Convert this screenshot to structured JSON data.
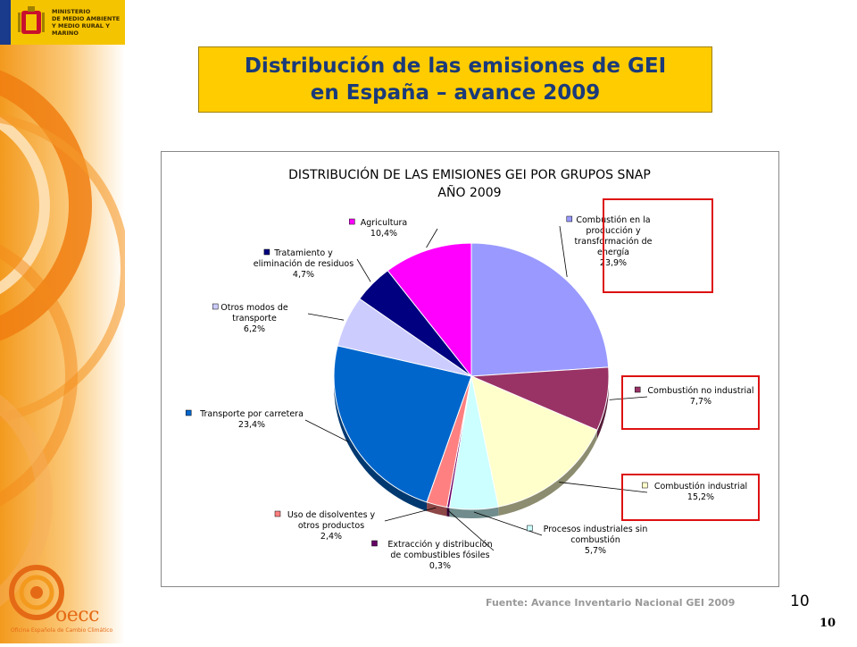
{
  "ministry": {
    "lines": [
      "MINISTERIO",
      "DE MEDIO AMBIENTE",
      "Y MEDIO RURAL Y MARINO"
    ]
  },
  "slide": {
    "title_line1": "Distribución de las emisiones de GEI",
    "title_line2": "en España – avance 2009",
    "source": "Fuente: Avance Inventario Nacional GEI 2009",
    "page_number": "10",
    "page_number_footer": "10"
  },
  "logo": {
    "name": "oecc",
    "subtitle": "Oficina Española de Cambio Climático"
  },
  "colors": {
    "orange": "#f39a1e",
    "title_bg": "#ffcc00",
    "title_text": "#1a3a7a",
    "highlight": "#dd1111"
  },
  "chart_data": {
    "type": "pie",
    "title": "DISTRIBUCIÓN DE LAS EMISIONES GEI POR GRUPOS SNAP",
    "subtitle": "AÑO 2009",
    "series": [
      {
        "name": "Combustión en la producción y transformación de energía",
        "label_lines": [
          "Combustión en la",
          "producción y",
          "transformación de",
          "energía"
        ],
        "value": 23.9,
        "value_label": "23,9%",
        "color": "#9999ff",
        "highlighted": true
      },
      {
        "name": "Combustión no industrial",
        "label_lines": [
          "Combustión no industrial"
        ],
        "value": 7.7,
        "value_label": "7,7%",
        "color": "#993366",
        "highlighted": true
      },
      {
        "name": "Combustión industrial",
        "label_lines": [
          "Combustión industrial"
        ],
        "value": 15.2,
        "value_label": "15,2%",
        "color": "#ffffcc",
        "highlighted": true
      },
      {
        "name": "Procesos industriales sin combustión",
        "label_lines": [
          "Procesos industriales sin",
          "combustión"
        ],
        "value": 5.7,
        "value_label": "5,7%",
        "color": "#ccffff",
        "highlighted": false
      },
      {
        "name": "Extracción y distribución de combustibles fósiles",
        "label_lines": [
          "Extracción y distribución",
          "de combustibles fósiles"
        ],
        "value": 0.3,
        "value_label": "0,3%",
        "color": "#660066",
        "highlighted": false
      },
      {
        "name": "Uso de disolventes y otros productos",
        "label_lines": [
          "Uso de disolventes y",
          "otros productos"
        ],
        "value": 2.4,
        "value_label": "2,4%",
        "color": "#ff8080",
        "highlighted": false
      },
      {
        "name": "Transporte por carretera",
        "label_lines": [
          "Transporte por carretera"
        ],
        "value": 23.4,
        "value_label": "23,4%",
        "color": "#0066cc",
        "highlighted": false
      },
      {
        "name": "Otros modos de transporte",
        "label_lines": [
          "Otros modos de",
          "transporte"
        ],
        "value": 6.2,
        "value_label": "6,2%",
        "color": "#ccccff",
        "highlighted": false
      },
      {
        "name": "Tratamiento y eliminación de residuos",
        "label_lines": [
          "Tratamiento y",
          "eliminación de residuos"
        ],
        "value": 4.7,
        "value_label": "4,7%",
        "color": "#000080",
        "highlighted": false
      },
      {
        "name": "Agricultura",
        "label_lines": [
          "Agricultura"
        ],
        "value": 10.4,
        "value_label": "10,4%",
        "color": "#ff00ff",
        "highlighted": false
      }
    ]
  }
}
